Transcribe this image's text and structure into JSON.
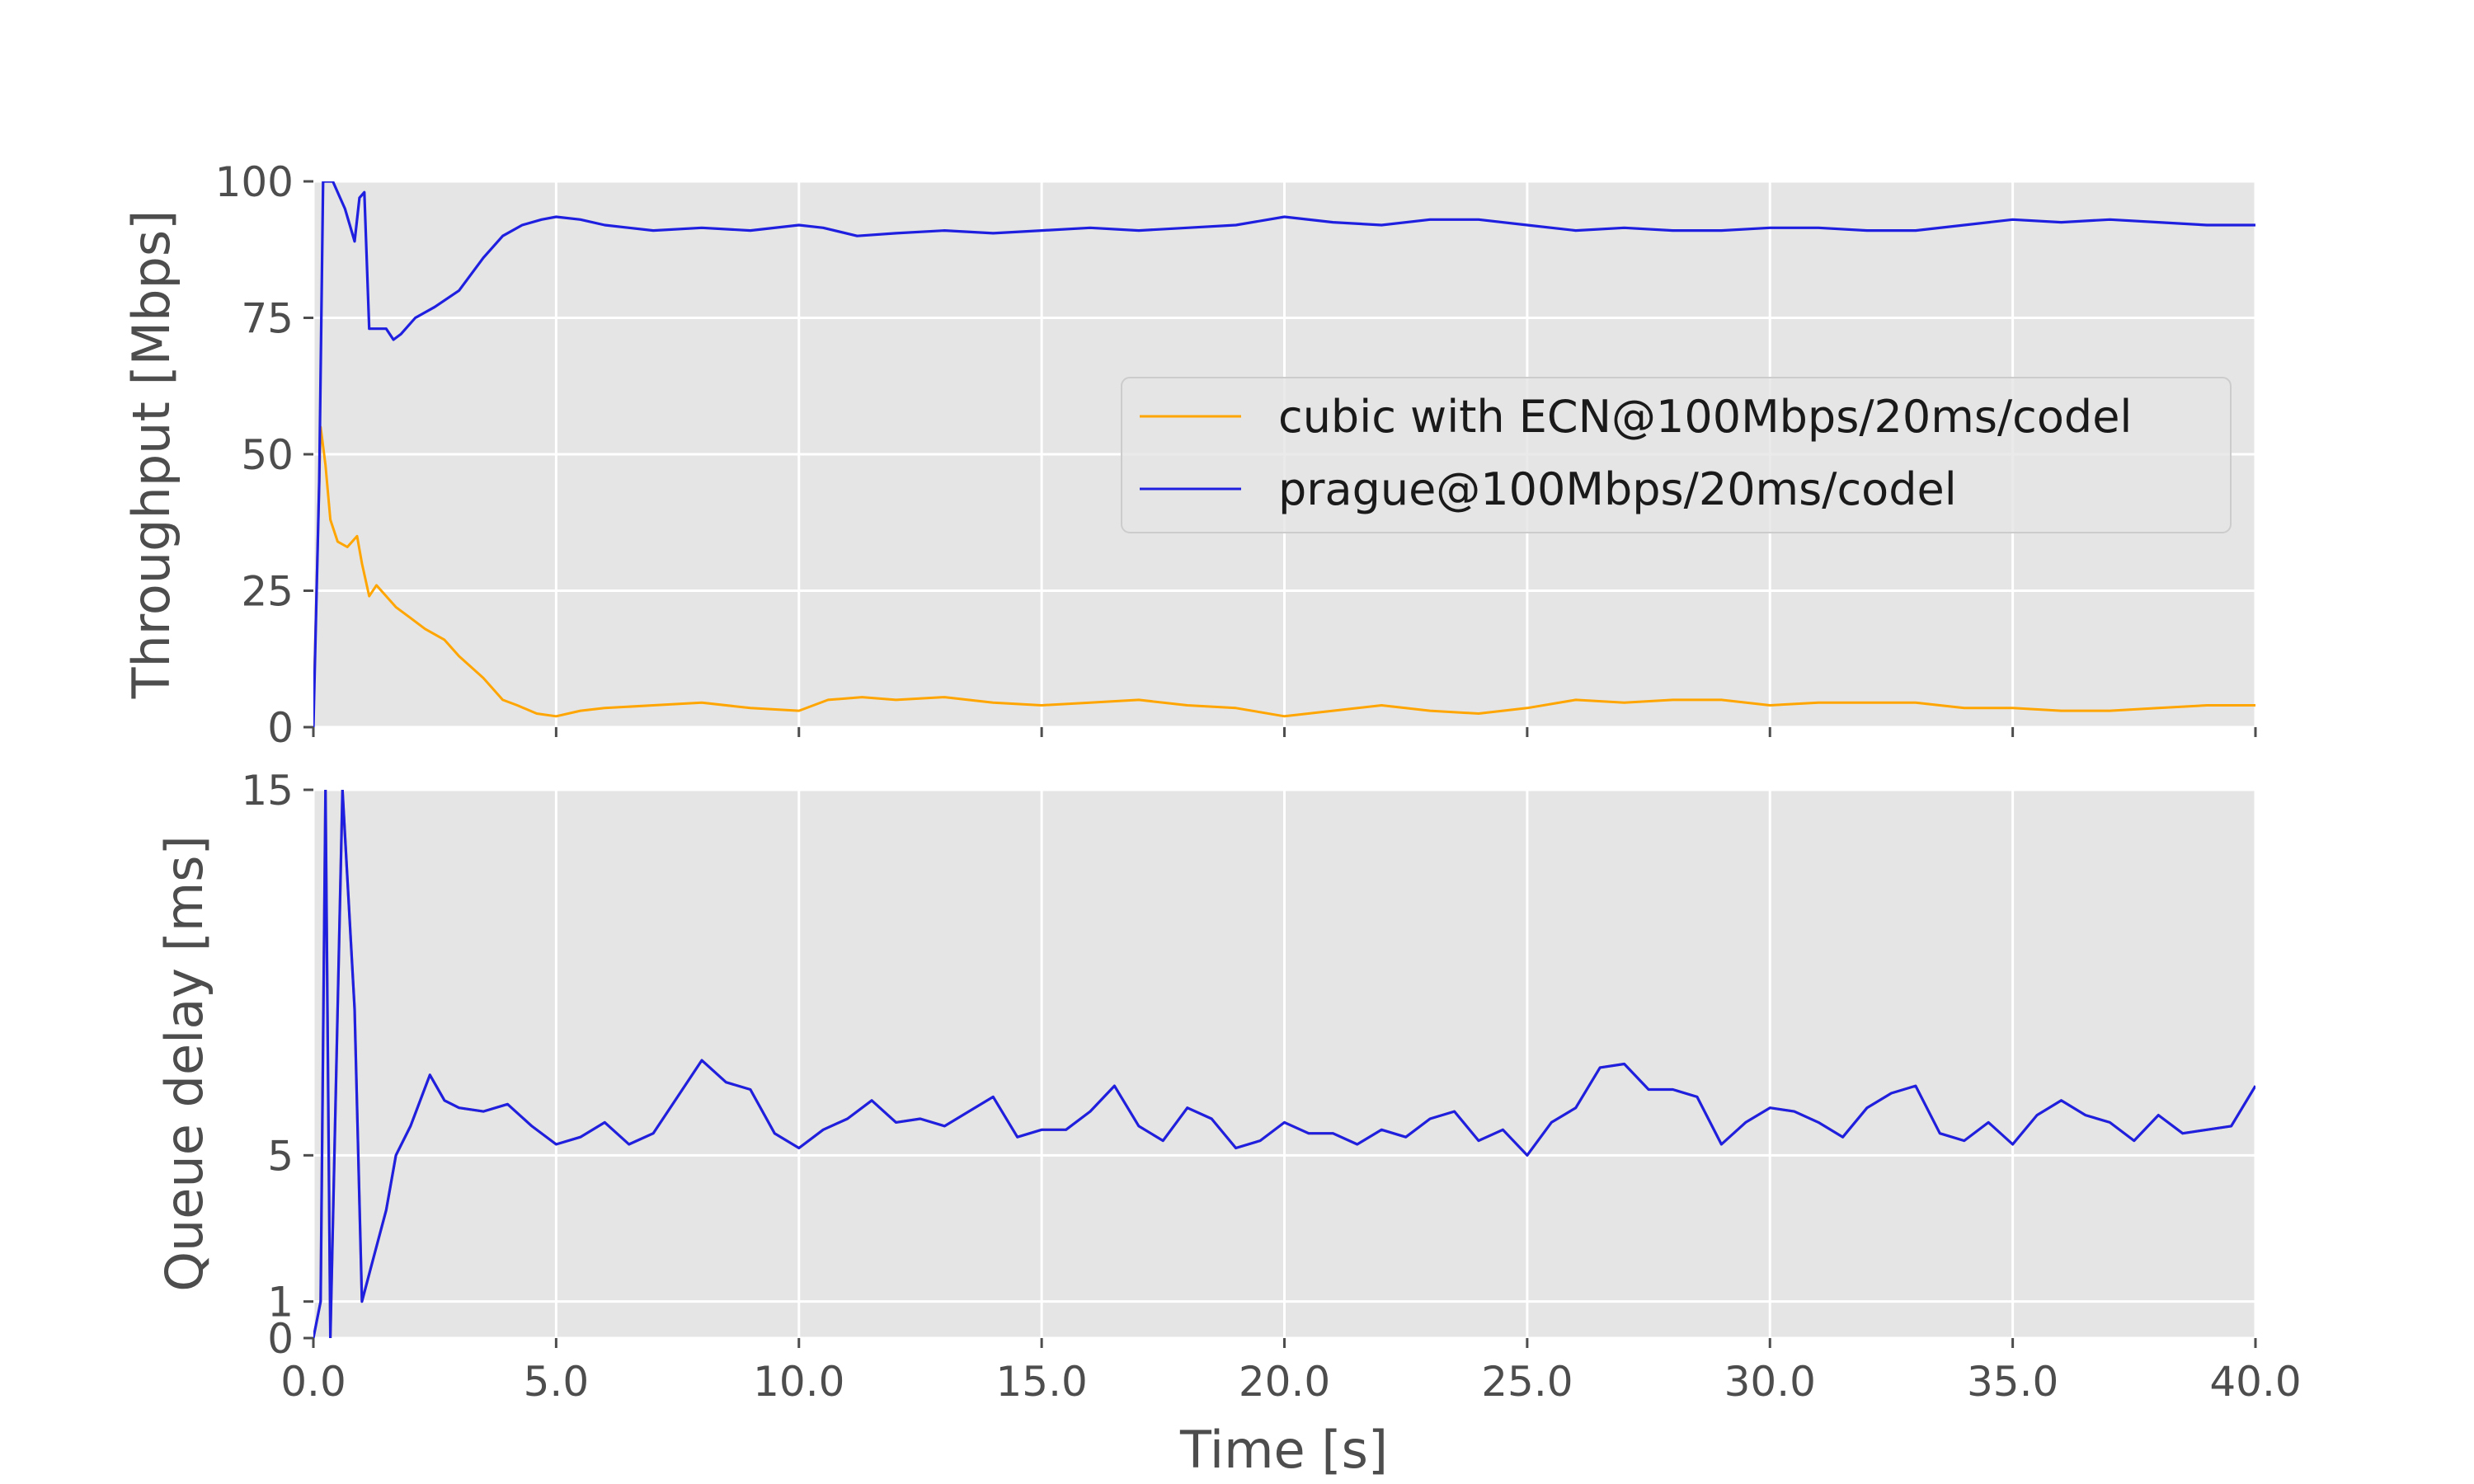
{
  "chart_data": [
    {
      "type": "line",
      "ylabel": "Throughput [Mbps]",
      "xlabel": "",
      "xlim": [
        0,
        40
      ],
      "ylim": [
        0,
        100
      ],
      "yticks": [
        0,
        25,
        50,
        75,
        100
      ],
      "xticks": [
        0,
        5,
        10,
        15,
        20,
        25,
        30,
        35,
        40
      ],
      "grid": true,
      "legend_position": "center-right",
      "series": [
        {
          "name": "cubic with ECN@100Mbps/20ms/codel",
          "color": "#ffa500",
          "x": [
            0,
            0.15,
            0.25,
            0.35,
            0.5,
            0.7,
            0.9,
            1.0,
            1.15,
            1.3,
            1.5,
            1.7,
            2.0,
            2.3,
            2.7,
            3.0,
            3.5,
            3.9,
            4.2,
            4.6,
            5.0,
            5.5,
            6.0,
            7.0,
            8.0,
            9.0,
            10.0,
            10.6,
            11.3,
            12.0,
            13.0,
            14.0,
            15.0,
            16.0,
            17.0,
            18.0,
            19.0,
            20.0,
            21.0,
            22.0,
            23.0,
            24.0,
            25.0,
            26.0,
            27.0,
            28.0,
            29.0,
            30.0,
            31.0,
            32.0,
            33.0,
            34.0,
            35.0,
            36.0,
            37.0,
            38.0,
            39.0,
            40.0
          ],
          "y": [
            2,
            55,
            48,
            38,
            34,
            33,
            35,
            30,
            24,
            26,
            24,
            22,
            20,
            18,
            16,
            13,
            9,
            5,
            4,
            2.5,
            2,
            3,
            3.5,
            4,
            4.5,
            3.5,
            3,
            5,
            5.5,
            5,
            5.5,
            4.5,
            4,
            4.5,
            5,
            4,
            3.5,
            2,
            3,
            4,
            3,
            2.5,
            3.5,
            5,
            4.5,
            5,
            5,
            4,
            4.5,
            4.5,
            4.5,
            3.5,
            3.5,
            3,
            3,
            3.5,
            4,
            4
          ]
        },
        {
          "name": "prague@100Mbps/20ms/codel",
          "color": "#1f1fe0",
          "x": [
            0,
            0.12,
            0.2,
            0.3,
            0.4,
            0.55,
            0.65,
            0.75,
            0.85,
            0.95,
            1.05,
            1.15,
            1.3,
            1.5,
            1.65,
            1.8,
            2.1,
            2.5,
            3.0,
            3.5,
            3.9,
            4.3,
            4.7,
            5.0,
            5.5,
            6.0,
            6.5,
            7.0,
            8.0,
            9.0,
            10.0,
            10.5,
            11.2,
            12.0,
            13.0,
            14.0,
            15.0,
            16.0,
            17.0,
            18.0,
            19.0,
            20.0,
            21.0,
            22.0,
            23.0,
            24.0,
            25.0,
            26.0,
            27.0,
            28.0,
            29.0,
            30.0,
            31.0,
            32.0,
            33.0,
            34.0,
            35.0,
            36.0,
            37.0,
            38.0,
            39.0,
            40.0
          ],
          "y": [
            0,
            45,
            100,
            100,
            100,
            97,
            95,
            92,
            89,
            97,
            98,
            73,
            73,
            73,
            71,
            72,
            75,
            77,
            80,
            86,
            90,
            92,
            93,
            93.5,
            93,
            92,
            91.5,
            91,
            91.5,
            91,
            92,
            91.5,
            90,
            90.5,
            91,
            90.5,
            91,
            91.5,
            91,
            91.5,
            92,
            93.5,
            92.5,
            92,
            93,
            93,
            92,
            91,
            91.5,
            91,
            91,
            91.5,
            91.5,
            91,
            91,
            92,
            93,
            92.5,
            93,
            92.5,
            92,
            92
          ]
        }
      ]
    },
    {
      "type": "line",
      "ylabel": "Queue delay [ms]",
      "xlabel": "Time [s]",
      "xlim": [
        0,
        40
      ],
      "ylim": [
        0,
        15
      ],
      "yticks": [
        0,
        1,
        5,
        15
      ],
      "xticks": [
        0,
        5,
        10,
        15,
        20,
        25,
        30,
        35,
        40
      ],
      "xtick_labels": [
        "0.0",
        "5.0",
        "10.0",
        "15.0",
        "20.0",
        "25.0",
        "30.0",
        "35.0",
        "40.0"
      ],
      "grid": true,
      "series": [
        {
          "name": "cubic with ECN@100Mbps/20ms/codel",
          "color": "#ffa500",
          "x": [
            0,
            0.15,
            0.25,
            0.35,
            0.6,
            0.85,
            1.0,
            1.2,
            1.5,
            1.7,
            2.0,
            2.4,
            2.7,
            3.0,
            3.5,
            4.0,
            4.5,
            5.0,
            5.5,
            6.0,
            6.5,
            7.0,
            7.5,
            8.0,
            8.5,
            9.0,
            9.5,
            10.0,
            10.5,
            11.0,
            11.5,
            12.0,
            12.5,
            13.0,
            13.5,
            14.0,
            14.5,
            15.0,
            15.5,
            16.0,
            16.5,
            17.0,
            17.5,
            18.0,
            18.5,
            19.0,
            19.5,
            20.0,
            20.5,
            21.0,
            21.5,
            22.0,
            22.5,
            23.0,
            23.5,
            24.0,
            24.5,
            25.0,
            25.5,
            26.0,
            26.5,
            27.0,
            27.5,
            28.0,
            28.5,
            29.0,
            29.5,
            30.0,
            30.5,
            31.0,
            31.5,
            32.0,
            32.5,
            33.0,
            33.5,
            34.0,
            34.5,
            35.0,
            35.5,
            36.0,
            36.5,
            37.0,
            37.5,
            38.0,
            38.5,
            39.0,
            39.5,
            40.0
          ],
          "y": [
            0,
            1,
            15,
            0,
            15,
            9,
            1,
            2,
            3.5,
            5,
            5.8,
            7.2,
            6.5,
            6.3,
            6.2,
            6.4,
            5.8,
            5.3,
            5.5,
            5.9,
            5.3,
            5.6,
            6.6,
            7.6,
            7.0,
            6.8,
            5.6,
            5.2,
            5.7,
            6.0,
            6.5,
            5.9,
            6.0,
            5.8,
            6.2,
            6.6,
            5.5,
            5.7,
            5.7,
            6.2,
            6.9,
            5.8,
            5.4,
            6.3,
            6.0,
            5.2,
            5.4,
            5.9,
            5.6,
            5.6,
            5.3,
            5.7,
            5.5,
            6.0,
            6.2,
            5.4,
            5.7,
            5.0,
            5.9,
            6.3,
            7.4,
            7.5,
            6.8,
            6.8,
            6.6,
            5.3,
            5.9,
            6.3,
            6.2,
            5.9,
            5.5,
            6.3,
            6.7,
            6.9,
            5.6,
            5.4,
            5.9,
            5.3,
            6.1,
            6.5,
            6.1,
            5.9,
            5.4,
            6.1,
            5.6,
            5.7,
            5.8,
            6.9
          ]
        },
        {
          "name": "prague@100Mbps/20ms/codel",
          "color": "#1f1fe0",
          "x": [
            0,
            0.15,
            0.25,
            0.35,
            0.6,
            0.85,
            1.0,
            1.2,
            1.5,
            1.7,
            2.0,
            2.4,
            2.7,
            3.0,
            3.5,
            4.0,
            4.5,
            5.0,
            5.5,
            6.0,
            6.5,
            7.0,
            7.5,
            8.0,
            8.5,
            9.0,
            9.5,
            10.0,
            10.5,
            11.0,
            11.5,
            12.0,
            12.5,
            13.0,
            13.5,
            14.0,
            14.5,
            15.0,
            15.5,
            16.0,
            16.5,
            17.0,
            17.5,
            18.0,
            18.5,
            19.0,
            19.5,
            20.0,
            20.5,
            21.0,
            21.5,
            22.0,
            22.5,
            23.0,
            23.5,
            24.0,
            24.5,
            25.0,
            25.5,
            26.0,
            26.5,
            27.0,
            27.5,
            28.0,
            28.5,
            29.0,
            29.5,
            30.0,
            30.5,
            31.0,
            31.5,
            32.0,
            32.5,
            33.0,
            33.5,
            34.0,
            34.5,
            35.0,
            35.5,
            36.0,
            36.5,
            37.0,
            37.5,
            38.0,
            38.5,
            39.0,
            39.5,
            40.0
          ],
          "y": [
            0,
            1,
            15,
            0,
            15,
            9,
            1,
            2,
            3.5,
            5,
            5.8,
            7.2,
            6.5,
            6.3,
            6.2,
            6.4,
            5.8,
            5.3,
            5.5,
            5.9,
            5.3,
            5.6,
            6.6,
            7.6,
            7.0,
            6.8,
            5.6,
            5.2,
            5.7,
            6.0,
            6.5,
            5.9,
            6.0,
            5.8,
            6.2,
            6.6,
            5.5,
            5.7,
            5.7,
            6.2,
            6.9,
            5.8,
            5.4,
            6.3,
            6.0,
            5.2,
            5.4,
            5.9,
            5.6,
            5.6,
            5.3,
            5.7,
            5.5,
            6.0,
            6.2,
            5.4,
            5.7,
            5.0,
            5.9,
            6.3,
            7.4,
            7.5,
            6.8,
            6.8,
            6.6,
            5.3,
            5.9,
            6.3,
            6.2,
            5.9,
            5.5,
            6.3,
            6.7,
            6.9,
            5.6,
            5.4,
            5.9,
            5.3,
            6.1,
            6.5,
            6.1,
            5.9,
            5.4,
            6.1,
            5.6,
            5.7,
            5.8,
            6.9
          ]
        }
      ]
    }
  ]
}
